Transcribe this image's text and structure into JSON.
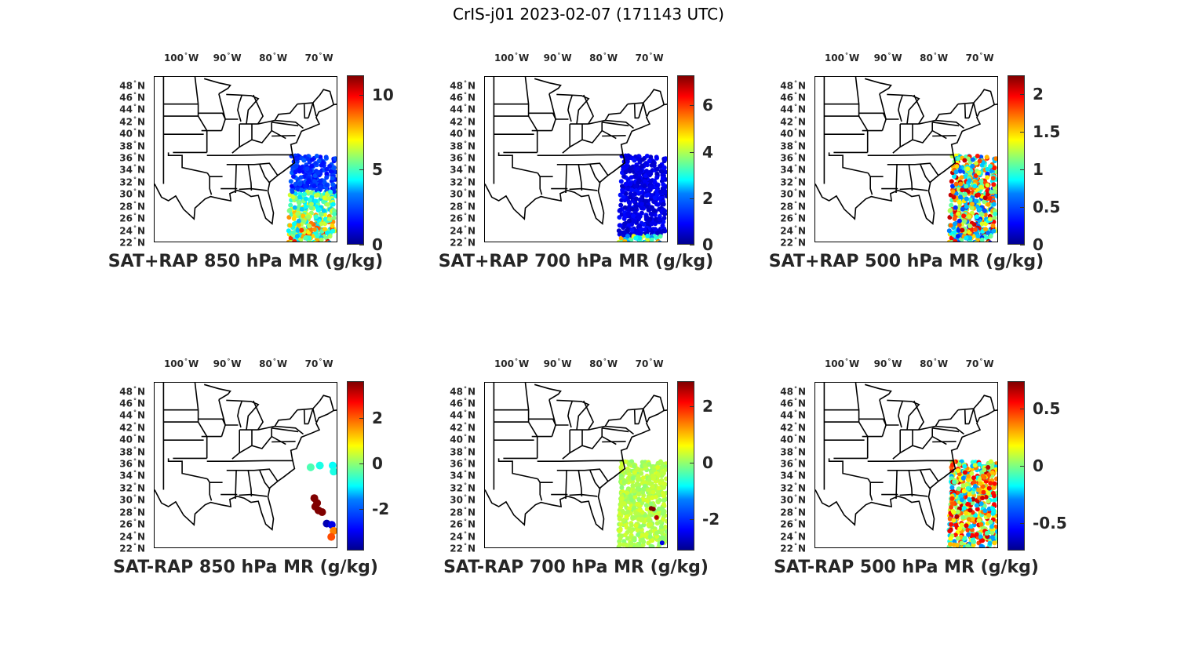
{
  "title": "CrIS-j01 2023-02-07 (171143 UTC)",
  "lon_labels": [
    "100",
    "90",
    "80",
    "70"
  ],
  "lon_suffix": "W",
  "lat_labels": [
    "48",
    "46",
    "44",
    "42",
    "40",
    "38",
    "36",
    "34",
    "32",
    "30",
    "28",
    "26",
    "24",
    "22"
  ],
  "lat_suffix": "N",
  "degree_symbol": "°",
  "panels": [
    {
      "title": "SAT+RAP 850 hPa MR (g/kg)",
      "colorbar": {
        "min": 0,
        "max": 11.3,
        "ticks": [
          "10",
          "5",
          "0"
        ],
        "tick_values": [
          10,
          5,
          0
        ]
      },
      "swath": "sum_850"
    },
    {
      "title": "SAT+RAP 700 hPa MR (g/kg)",
      "colorbar": {
        "min": 0,
        "max": 7.3,
        "ticks": [
          "6",
          "4",
          "2",
          "0"
        ],
        "tick_values": [
          6,
          4,
          2,
          0
        ]
      },
      "swath": "sum_700"
    },
    {
      "title": "SAT+RAP 500 hPa MR (g/kg)",
      "colorbar": {
        "min": 0,
        "max": 2.25,
        "ticks": [
          "2",
          "1.5",
          "1",
          "0.5",
          "0"
        ],
        "tick_values": [
          2,
          1.5,
          1,
          0.5,
          0
        ]
      },
      "swath": "sum_500"
    },
    {
      "title": "SAT-RAP 850 hPa MR (g/kg)",
      "colorbar": {
        "min": -3.8,
        "max": 3.6,
        "ticks": [
          "2",
          "0",
          "-2"
        ],
        "tick_values": [
          2,
          0,
          -2
        ]
      },
      "swath": "diff_850"
    },
    {
      "title": "SAT-RAP 700 hPa MR (g/kg)",
      "colorbar": {
        "min": -3.1,
        "max": 2.9,
        "ticks": [
          "2",
          "0",
          "-2"
        ],
        "tick_values": [
          2,
          0,
          -2
        ]
      },
      "swath": "diff_700"
    },
    {
      "title": "SAT-RAP 500 hPa MR (g/kg)",
      "colorbar": {
        "min": -0.74,
        "max": 0.74,
        "ticks": [
          "0.5",
          "0",
          "-0.5"
        ],
        "tick_values": [
          0.5,
          0,
          -0.5
        ]
      },
      "swath": "diff_500"
    }
  ],
  "colors": {
    "map_lines": "#000000",
    "label_text": "#262626"
  }
}
